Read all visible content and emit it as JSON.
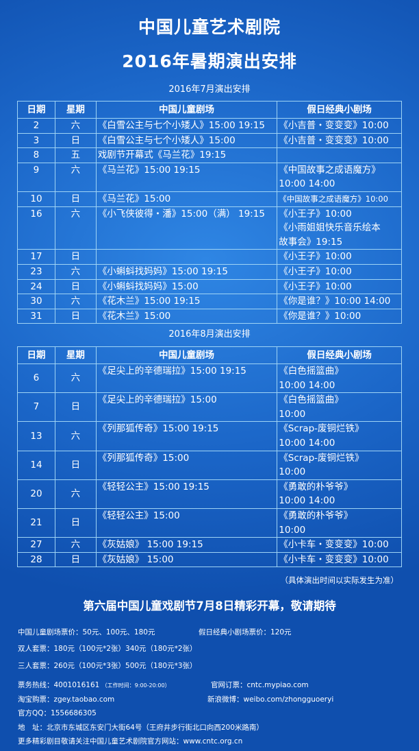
{
  "header": {
    "title": "中国儿童艺术剧院",
    "subtitle": "2016年暑期演出安排"
  },
  "columns": [
    "日期",
    "星期",
    "中国儿童剧场",
    "假日经典小剧场"
  ],
  "july": {
    "label": "2016年7月演出安排",
    "rows": [
      {
        "date": "2",
        "day": "六",
        "main": [
          "《白雪公主与七个小矮人》15:00 19:15"
        ],
        "holiday": [
          "《小吉普・变变变》10:00"
        ]
      },
      {
        "date": "3",
        "day": "日",
        "main": [
          "《白雪公主与七个小矮人》15:00"
        ],
        "holiday": [
          "《小吉普・变变变》10:00"
        ]
      },
      {
        "date": "8",
        "day": "五",
        "main": [
          "戏剧节开幕式《马兰花》19:15"
        ],
        "holiday": []
      },
      {
        "date": "9",
        "day": "六",
        "main": [
          "《马兰花》15:00 19:15"
        ],
        "holiday": [
          "《中国故事之成语魔方》",
          "10:00 14:00"
        ]
      },
      {
        "date": "10",
        "day": "日",
        "main": [
          "《马兰花》15:00"
        ],
        "holiday": [
          "《中国故事之成语魔方》10:00"
        ]
      },
      {
        "date": "16",
        "day": "六",
        "main": [
          "《小飞侠彼得・潘》15:00（满） 19:15"
        ],
        "holiday": [
          "《小王子》10:00",
          "《小雨姐姐快乐音乐绘本",
          "故事会》19:15"
        ]
      },
      {
        "date": "17",
        "day": "日",
        "main": [],
        "holiday": [
          "《小王子》10:00"
        ]
      },
      {
        "date": "23",
        "day": "六",
        "main": [
          "《小蝌蚪找妈妈》15:00 19:15"
        ],
        "holiday": [
          "《小王子》10:00"
        ]
      },
      {
        "date": "24",
        "day": "日",
        "main": [
          "《小蝌蚪找妈妈》15:00"
        ],
        "holiday": [
          "《小王子》10:00"
        ]
      },
      {
        "date": "30",
        "day": "六",
        "main": [
          "《花木兰》15:00 19:15"
        ],
        "holiday": [
          "《你是谁？》10:00 14:00"
        ]
      },
      {
        "date": "31",
        "day": "日",
        "main": [
          "《花木兰》15:00"
        ],
        "holiday": [
          "《你是谁？》10:00"
        ]
      }
    ]
  },
  "august": {
    "label": "2016年8月演出安排",
    "rows": [
      {
        "date": "6",
        "day": "六",
        "main": [
          "《足尖上的辛德瑞拉》15:00 19:15"
        ],
        "holiday": [
          "《白色摇篮曲》",
          "10:00 14:00"
        ]
      },
      {
        "date": "7",
        "day": "日",
        "main": [
          "《足尖上的辛德瑞拉》15:00"
        ],
        "holiday": [
          "《白色摇篮曲》",
          "10:00"
        ]
      },
      {
        "date": "13",
        "day": "六",
        "main": [
          "《列那狐传奇》15:00 19:15"
        ],
        "holiday": [
          "《Scrap-废铜烂铁》",
          "10:00 14:00"
        ]
      },
      {
        "date": "14",
        "day": "日",
        "main": [
          "《列那狐传奇》15:00"
        ],
        "holiday": [
          "《Scrap-废铜烂铁》",
          "10:00"
        ]
      },
      {
        "date": "20",
        "day": "六",
        "main": [
          "《轻轻公主》15:00 19:15"
        ],
        "holiday": [
          "《勇敢的朴爷爷》",
          "10:00 14:00"
        ]
      },
      {
        "date": "21",
        "day": "日",
        "main": [
          "《轻轻公主》15:00"
        ],
        "holiday": [
          "《勇敢的朴爷爷》",
          "10:00"
        ]
      },
      {
        "date": "27",
        "day": "六",
        "main": [
          "《灰姑娘》 15:00 19:15"
        ],
        "holiday": [
          "《小卡车・变变变》10:00"
        ]
      },
      {
        "date": "28",
        "day": "日",
        "main": [
          "《灰姑娘》 15:00"
        ],
        "holiday": [
          "《小卡车・变变变》10:00"
        ]
      }
    ]
  },
  "note": "（具体演出时间以实际发生为准）",
  "festival": "第六届中国儿童戏剧节7月8日精彩开幕，敬请期待",
  "prices": {
    "main": "中国儿童剧场票价：50元、100元、180元",
    "holiday": "假日经典小剧场票价：120元",
    "double": "双人套票：180元（100元*2张）340元（180元*2张）",
    "triple": "三人套票：260元（100元*3张）500元（180元*3张）"
  },
  "contact": {
    "hotline": "票务热线：4001016161",
    "hours": "（工作时间：9:00-20:00）",
    "web": "官网订票：cntc.mypiao.com",
    "taobao": "淘宝购票：zgey.taobao.com",
    "weibo": "新浪微博：weibo.com/zhongguoeryi",
    "qq": "官方QQ：1556686305",
    "address": "地　址：北京市东城区东安门大街64号（王府井步行街北口向西200米路南）",
    "more": "更多精彩剧目敬请关注中国儿童艺术剧院官方网站：www.cntc.org.cn"
  }
}
